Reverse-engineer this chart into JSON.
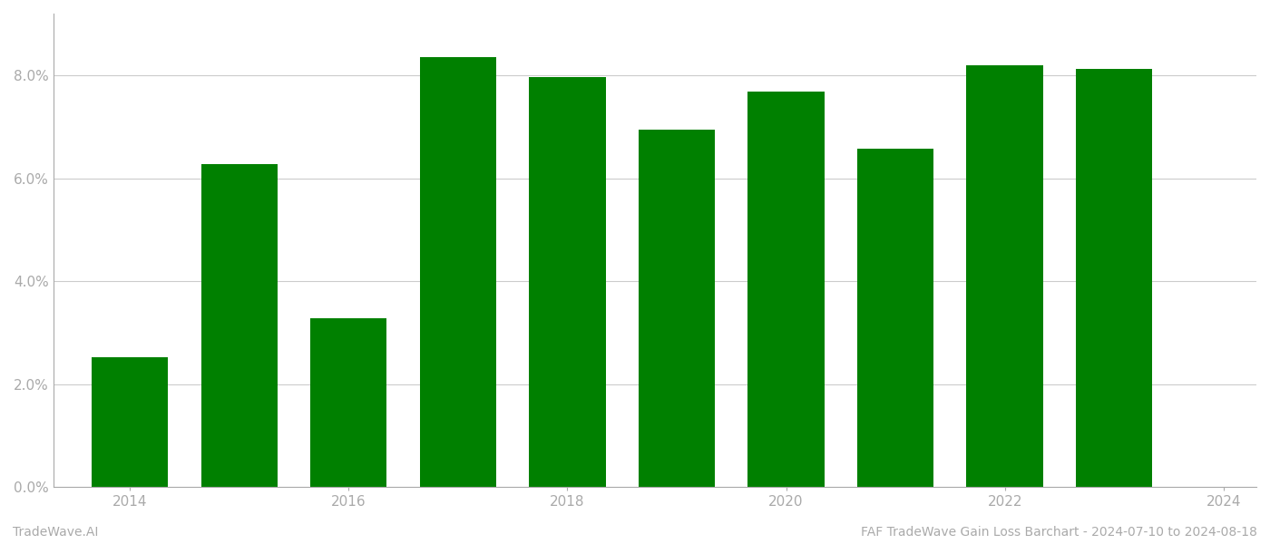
{
  "years": [
    2014,
    2015,
    2016,
    2017,
    2018,
    2019,
    2020,
    2021,
    2022,
    2023
  ],
  "values": [
    0.0252,
    0.0628,
    0.0328,
    0.0835,
    0.0797,
    0.0695,
    0.0768,
    0.0658,
    0.082,
    0.0812
  ],
  "bar_color": "#008000",
  "background_color": "#ffffff",
  "grid_color": "#cccccc",
  "ylabel_ticks": [
    0.0,
    0.02,
    0.04,
    0.06,
    0.08
  ],
  "ylim": [
    0,
    0.092
  ],
  "xlabel_bottom_left": "TradeWave.AI",
  "xlabel_bottom_right": "FAF TradeWave Gain Loss Barchart - 2024-07-10 to 2024-08-18",
  "tick_color": "#aaaaaa",
  "spine_color": "#aaaaaa",
  "axis_label_fontsize": 11,
  "footer_fontsize": 10,
  "bar_width": 0.7,
  "xtick_positions": [
    2014,
    2016,
    2018,
    2020,
    2022,
    2024
  ],
  "xtick_labels": [
    "2014",
    "2016",
    "2018",
    "2020",
    "2022",
    "2024"
  ],
  "xlim": [
    2013.3,
    2024.3
  ]
}
